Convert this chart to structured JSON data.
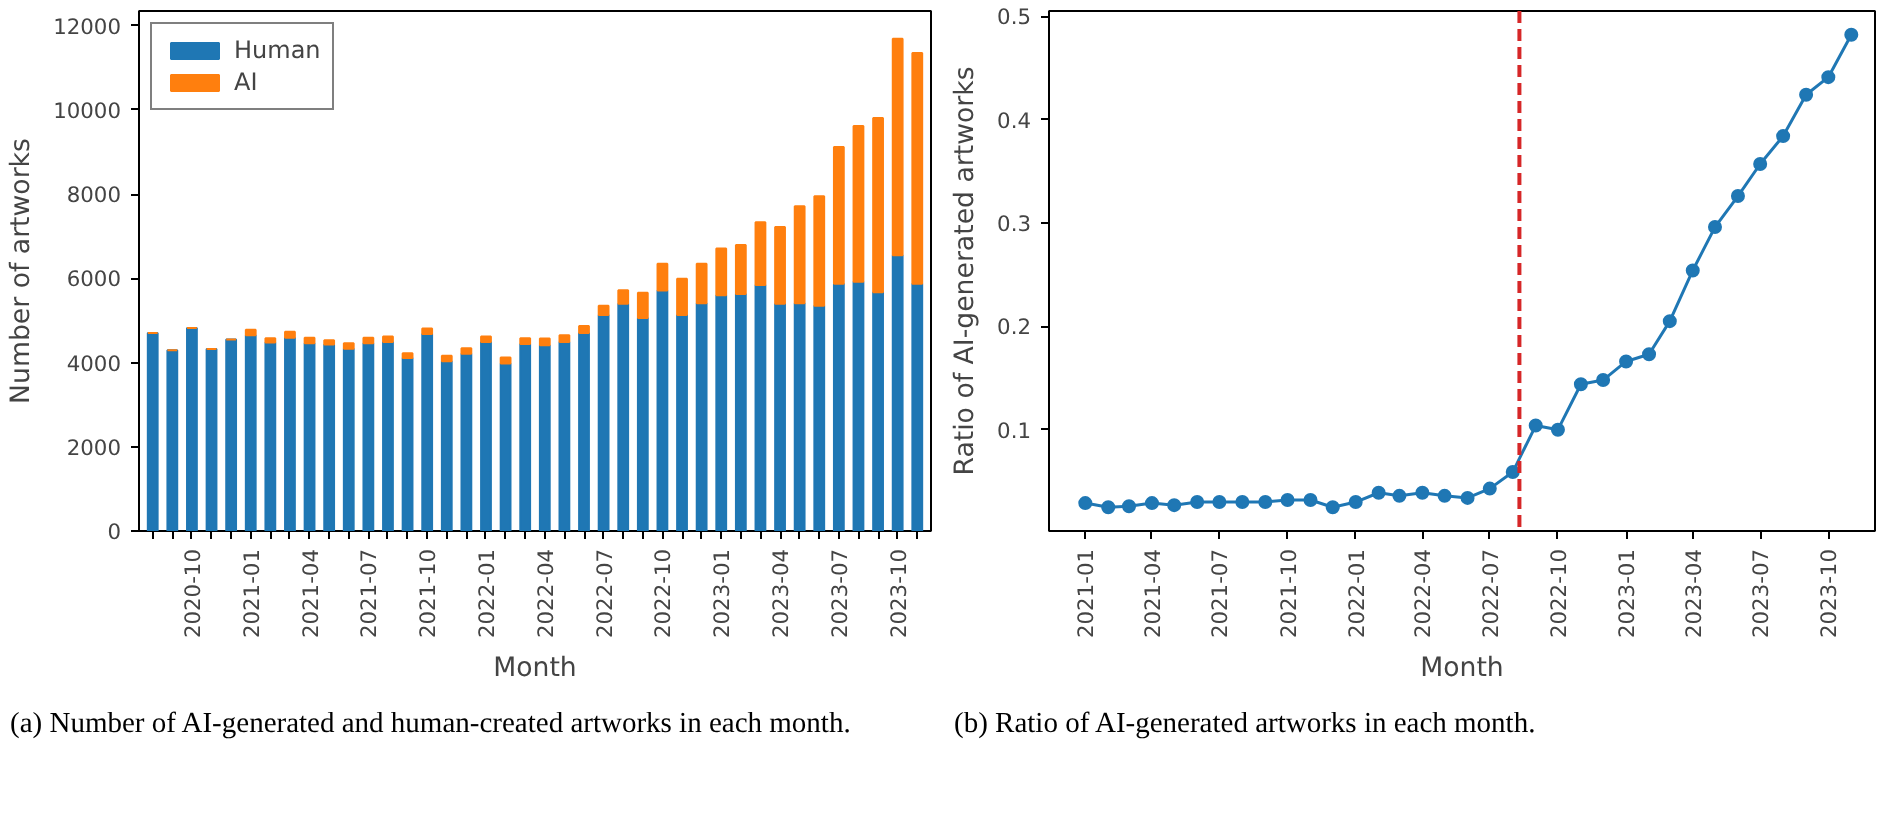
{
  "chart_data": [
    {
      "type": "bar",
      "stacked": true,
      "xlabel": "Month",
      "ylabel": "Number of artworks",
      "categories": [
        null,
        null,
        "2020-10",
        null,
        null,
        "2021-01",
        null,
        null,
        "2021-04",
        null,
        null,
        "2021-07",
        null,
        null,
        "2021-10",
        null,
        null,
        "2022-01",
        null,
        null,
        "2022-04",
        null,
        null,
        "2022-07",
        null,
        null,
        "2022-10",
        null,
        null,
        "2023-01",
        null,
        null,
        "2023-04",
        null,
        null,
        "2023-07",
        null,
        null,
        "2023-10",
        null
      ],
      "series": [
        {
          "name": "Human",
          "color": "#1f77b4",
          "values": [
            4700,
            4290,
            4820,
            4320,
            4550,
            4650,
            4475,
            4590,
            4460,
            4430,
            4330,
            4460,
            4490,
            4110,
            4680,
            4030,
            4210,
            4490,
            3980,
            4440,
            4410,
            4490,
            4700,
            5130,
            5400,
            5060,
            5710,
            5130,
            5410,
            5600,
            5630,
            5840,
            5400,
            5410,
            5350,
            5870,
            5920,
            5670,
            6550,
            5870
          ]
        },
        {
          "name": "AI",
          "color": "#ff7f0e",
          "values": [
            0,
            0,
            0,
            0,
            0,
            130,
            100,
            140,
            130,
            100,
            130,
            130,
            130,
            110,
            130,
            130,
            130,
            130,
            140,
            140,
            160,
            160,
            170,
            220,
            320,
            600,
            640,
            860,
            940,
            1110,
            1160,
            1490,
            1820,
            2300,
            2600,
            3250,
            3700,
            4140,
            5140,
            5480
          ]
        }
      ],
      "ylim": [
        0,
        12350
      ],
      "yticks": [
        0,
        2000,
        4000,
        6000,
        8000,
        10000,
        12000
      ],
      "grid": false,
      "legend": "top left",
      "annotations": [
        "(a) Number of AI-generated and human-created artworks in each month."
      ]
    },
    {
      "type": "line",
      "xlabel": "Month",
      "ylabel": "Ratio of AI-generated artworks",
      "marker": "circle",
      "line_style": "solid",
      "x": [
        "2021-01",
        "2021-02",
        "2021-03",
        "2021-04",
        "2021-05",
        "2021-06",
        "2021-07",
        "2021-08",
        "2021-09",
        "2021-10",
        "2021-11",
        "2021-12",
        "2022-01",
        "2022-02",
        "2022-03",
        "2022-04",
        "2022-05",
        "2022-06",
        "2022-07",
        "2022-08",
        "2022-09",
        "2022-10",
        "2022-11",
        "2022-12",
        "2023-01",
        "2023-02",
        "2023-03",
        "2023-04",
        "2023-05",
        "2023-06",
        "2023-07",
        "2023-08",
        "2023-09",
        "2023-10",
        "2023-11"
      ],
      "series": [
        {
          "color": "#1f77b4",
          "values": [
            0.029,
            0.025,
            0.026,
            0.029,
            0.027,
            0.03,
            0.03,
            0.03,
            0.03,
            0.032,
            0.032,
            0.025,
            0.03,
            0.039,
            0.036,
            0.039,
            0.036,
            0.034,
            0.043,
            0.059,
            0.104,
            0.1,
            0.144,
            0.148,
            0.166,
            0.173,
            0.205,
            0.254,
            0.296,
            0.326,
            0.357,
            0.384,
            0.424,
            0.441,
            0.482
          ]
        }
      ],
      "xlim": [
        "2020-11-13",
        "2023-12-03"
      ],
      "xticks": [
        "2021-01",
        "2021-04",
        "2021-07",
        "2021-10",
        "2022-01",
        "2022-04",
        "2022-07",
        "2022-10",
        "2023-01",
        "2023-04",
        "2023-07",
        "2023-10"
      ],
      "ylim": [
        0.002,
        0.505
      ],
      "yticks": [
        0.1,
        0.2,
        0.3,
        0.4,
        0.5
      ],
      "grid": false,
      "ref_lines": [
        {
          "axis": "x",
          "value": "2022-08-10",
          "color": "#d62728",
          "line_style": "dashed"
        }
      ],
      "annotations": [
        "(b) Ratio of AI-generated artworks in each month."
      ]
    }
  ]
}
